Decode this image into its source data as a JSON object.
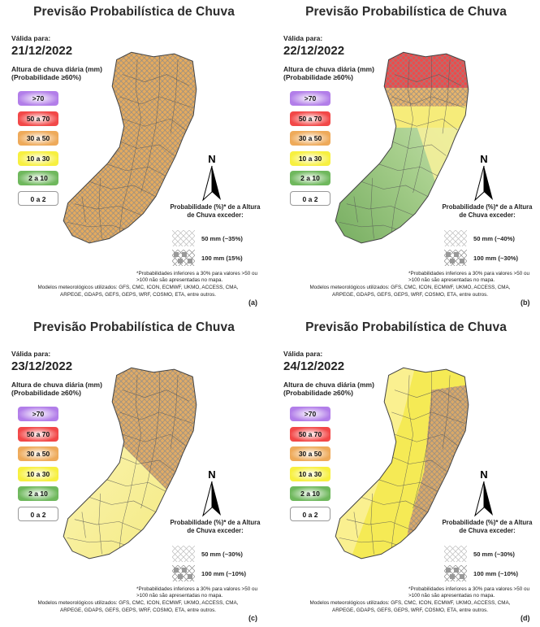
{
  "shared": {
    "title": "Previsão Probabilística de Chuva",
    "valid_label": "Válida para:",
    "rain_label": "Altura de chuva diária (mm)",
    "rain_sub": "(Probabilidade ≥60%)",
    "north": "N",
    "prob_title": "Probabilidade (%)* de a Altura de Chuva exceder:",
    "footnote": "*Probabilidades inferiores a 30% para valores >50 ou >100 não são apresentadas no mapa.",
    "models": "Modelos meteorológicos utilizados: GFS, CMC, ICON, ECMWF, UKMO, ACCESS, CMA, ARPEGE, GDAPS, GEFS, GEPS, WRF, COSMO, ETA, entre outros.",
    "legend": [
      {
        "label": ">70",
        "color": "#b27ee9"
      },
      {
        "label": "50 a 70",
        "color": "#f24848"
      },
      {
        "label": "30 a 50",
        "color": "#eeaa5a"
      },
      {
        "label": "10 a 30",
        "color": "#f7f040"
      },
      {
        "label": "2 a 10",
        "color": "#6fb85d"
      },
      {
        "label": "0 a 2",
        "color": "#ffffff"
      }
    ]
  },
  "panels": [
    {
      "letter": "(a)",
      "date": "21/12/2022",
      "p50": "50 mm (~35%)",
      "p100": "100 mm (15%)"
    },
    {
      "letter": "(b)",
      "date": "22/12/2022",
      "p50": "50 mm (~40%)",
      "p100": "100 mm (~30%)"
    },
    {
      "letter": "(c)",
      "date": "23/12/2022",
      "p50": "50 mm (~30%)",
      "p100": "100 mm (~10%)"
    },
    {
      "letter": "(d)",
      "date": "24/12/2022",
      "p50": "50 mm (~30%)",
      "p100": "100 mm (~10%)"
    }
  ]
}
